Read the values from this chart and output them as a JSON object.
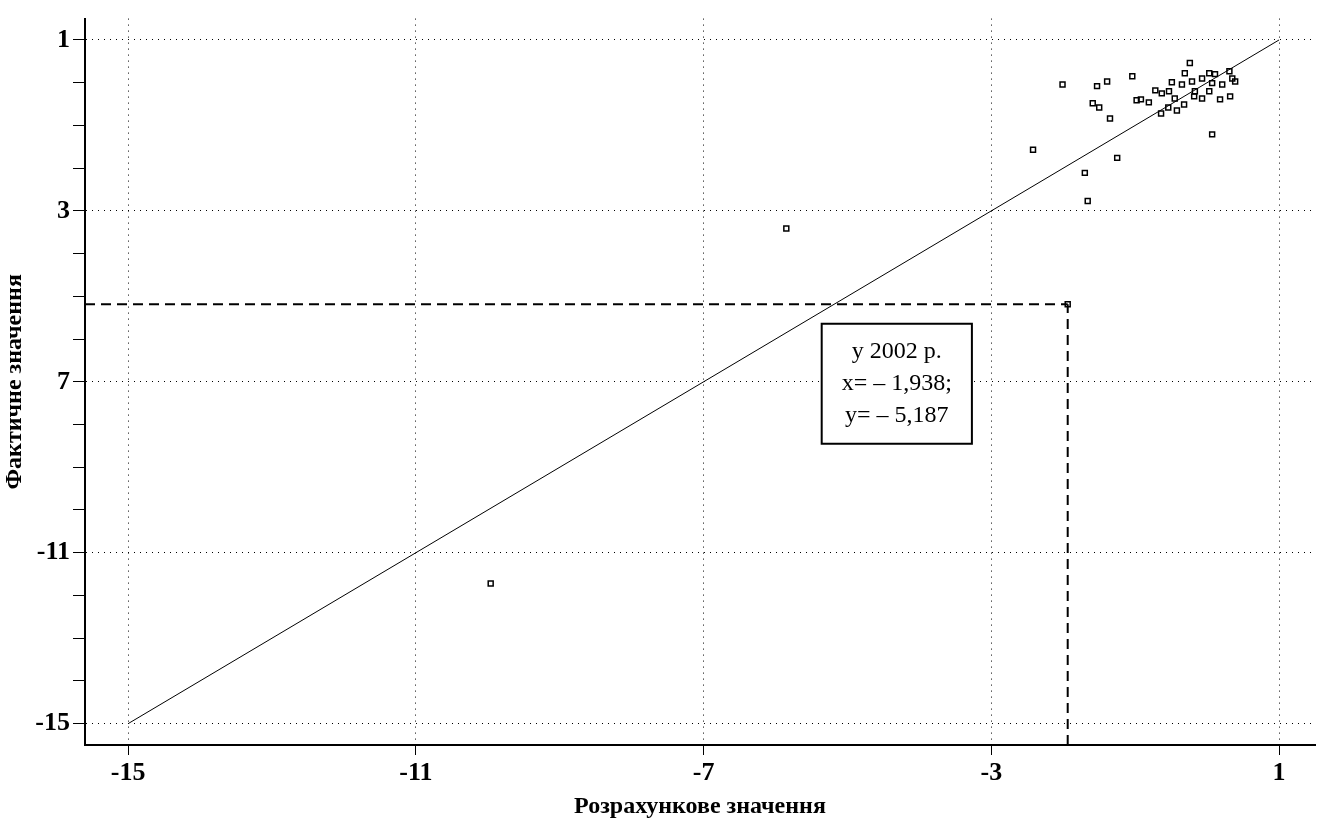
{
  "chart_data": {
    "type": "scatter",
    "xlabel": "Розрахункове значення",
    "ylabel": "Фактичне значення",
    "xlim": [
      -15.6,
      1.5
    ],
    "ylim": [
      -15.5,
      1.5
    ],
    "xticks": [
      -15,
      -11,
      -7,
      -3,
      1
    ],
    "yticks": [
      1,
      {
        "value": 0,
        "label": null
      },
      {
        "value": -1,
        "label": null
      },
      {
        "value": -2,
        "label": null
      },
      {
        "value": -3,
        "label": "3"
      },
      {
        "value": -4,
        "label": null
      },
      {
        "value": -5,
        "label": null
      },
      {
        "value": -6,
        "label": null
      },
      {
        "value": -7,
        "label": "7"
      },
      {
        "value": -8,
        "label": null
      },
      {
        "value": -9,
        "label": null
      },
      {
        "value": -10,
        "label": null
      },
      -11,
      {
        "value": -12,
        "label": null
      },
      {
        "value": -13,
        "label": null
      },
      {
        "value": -14,
        "label": null
      },
      -15
    ],
    "grid": true,
    "marker": "square",
    "series": [
      {
        "color": "#000000",
        "x": [
          -2.01,
          -1.53,
          -1.39,
          -1.04,
          -1.59,
          -1.5,
          -1.35,
          -2.42,
          -1.25,
          -1.7,
          -1.66,
          0.07,
          -0.24,
          -0.98,
          -0.92,
          -0.81,
          -0.64,
          -0.54,
          -0.42,
          -0.32,
          -0.72,
          -0.49,
          -0.31,
          -0.07,
          0.11,
          0.31,
          0.39,
          0.21,
          0.03,
          -0.17,
          -0.35,
          -0.45,
          -0.07,
          0.18,
          0.32,
          -0.63,
          0.07,
          -0.21,
          0.35,
          0.03,
          -0.18,
          -0.53,
          -5.85,
          -9.96,
          -1.938
        ],
        "values": [
          -0.04,
          -0.08,
          0.03,
          0.15,
          -0.48,
          -0.58,
          -0.84,
          -1.57,
          -1.76,
          -2.11,
          -2.77,
          -1.21,
          0.46,
          -0.41,
          -0.39,
          -0.46,
          -0.72,
          -0.58,
          -0.65,
          -0.51,
          -0.18,
          0.01,
          0.22,
          0.1,
          0.2,
          0.27,
          0.03,
          -0.04,
          -0.2,
          -0.2,
          -0.04,
          -0.37,
          -0.37,
          -0.39,
          -0.32,
          -0.25,
          -0.01,
          0.03,
          0.1,
          0.22,
          -0.32,
          -0.2,
          -3.41,
          -11.72,
          -5.187
        ]
      },
      {
        "type": "line",
        "color": "#000000",
        "marker": "none",
        "line_style": "solid",
        "x": [
          -15,
          1
        ],
        "values": [
          -15,
          1
        ]
      }
    ],
    "ref_lines": [
      {
        "axis": "x",
        "value": -1.938,
        "color": "#000000",
        "line_style": "dashed"
      },
      {
        "axis": "y",
        "value": -5.187,
        "color": "#000000",
        "line_style": "dashed"
      }
    ],
    "annotations": [
      "у 2002 р.",
      "x= – 1,938;",
      "y= – 5,187"
    ]
  }
}
